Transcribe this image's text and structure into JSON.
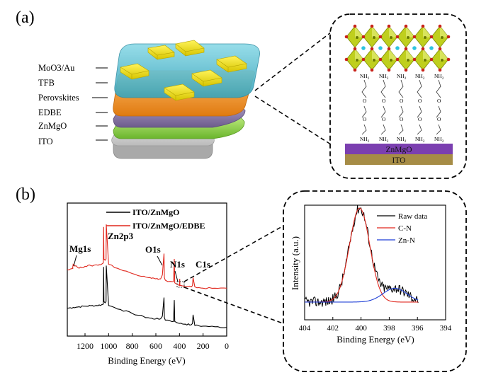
{
  "panel_a": {
    "label": "(a)",
    "layers": [
      {
        "name": "MoO3/Au",
        "color": "#f2e600"
      },
      {
        "name": "TFB",
        "color": "#5fc4d6"
      },
      {
        "name": "Perovskites",
        "color": "#f39a35"
      },
      {
        "name": "EDBE",
        "color": "#8a78a8"
      },
      {
        "name": "ZnMgO",
        "color": "#9fd45a"
      },
      {
        "name": "ITO",
        "color": "#d8d8d8"
      }
    ],
    "inset": {
      "ammonium_label": "NH",
      "subscript": "2",
      "oxygen_label": "O",
      "zinc_layer": "ZnMgO",
      "ito_layer": "ITO",
      "zinc_color": "#7b3fb0",
      "ito_color": "#a68c46",
      "octahedron_color": "#bfcf1e"
    }
  },
  "panel_b": {
    "label": "(b)",
    "chart_data": [
      {
        "type": "line",
        "xlabel": "Binding Energy (eV)",
        "ylabel": "",
        "xlim": [
          1350,
          0
        ],
        "xticks": [
          1200,
          1000,
          800,
          600,
          400,
          200,
          0
        ],
        "series": [
          {
            "name": "ITO/ZnMgO",
            "color": "#000000",
            "x": [
              1350,
              1300,
              1250,
              1200,
              1150,
              1100,
              1060,
              1045,
              1042,
              1040,
              1030,
              1022,
              1020,
              1000,
              900,
              800,
              700,
              650,
              600,
              560,
              545,
              531,
              528,
              520,
              500,
              450,
              444,
              440,
              420,
              400,
              350,
              300,
              290,
              285,
              270,
              200,
              100,
              0
            ],
            "y": [
              0.21,
              0.215,
              0.22,
              0.225,
              0.228,
              0.23,
              0.235,
              0.24,
              0.52,
              0.26,
              0.25,
              0.26,
              0.53,
              0.23,
              0.2,
              0.17,
              0.145,
              0.135,
              0.13,
              0.13,
              0.15,
              0.29,
              0.14,
              0.12,
              0.12,
              0.11,
              0.27,
              0.11,
              0.1,
              0.095,
              0.09,
              0.085,
              0.095,
              0.16,
              0.08,
              0.075,
              0.07,
              0.065
            ]
          },
          {
            "name": "ITO/ZnMgO/EDBE",
            "color": "#e0261c",
            "x": [
              1350,
              1300,
              1305,
              1300,
              1250,
              1200,
              1150,
              1100,
              1060,
              1045,
              1042,
              1040,
              1030,
              1022,
              1020,
              1000,
              900,
              800,
              700,
              650,
              600,
              560,
              545,
              531,
              528,
              520,
              500,
              450,
              444,
              440,
              420,
              400,
              398,
              396,
              350,
              300,
              290,
              285,
              270,
              200,
              100,
              0
            ],
            "y": [
              0.5,
              0.51,
              0.51,
              0.54,
              0.51,
              0.525,
              0.53,
              0.535,
              0.54,
              0.55,
              0.82,
              0.58,
              0.57,
              0.58,
              0.84,
              0.54,
              0.5,
              0.47,
              0.45,
              0.44,
              0.43,
              0.43,
              0.46,
              0.62,
              0.44,
              0.42,
              0.41,
              0.41,
              0.58,
              0.4,
              0.39,
              0.38,
              0.43,
              0.38,
              0.37,
              0.37,
              0.38,
              0.44,
              0.37,
              0.36,
              0.36,
              0.36
            ]
          }
        ],
        "annotations": [
          {
            "text": "Mg1s",
            "x": 1304
          },
          {
            "text": "Zn2p3",
            "x": 1022
          },
          {
            "text": "O1s",
            "x": 531
          },
          {
            "text": "N1s",
            "x": 400
          },
          {
            "text": "C1s",
            "x": 285
          }
        ],
        "legend": "top-right",
        "grid": false
      },
      {
        "type": "line",
        "xlabel": "Binding Energy (eV)",
        "ylabel": "Intensity (a.u.)",
        "xlim": [
          404,
          394
        ],
        "xticks": [
          404,
          402,
          400,
          398,
          396,
          394
        ],
        "series": [
          {
            "name": "Raw data",
            "color": "#000000",
            "raw": true
          },
          {
            "name": "C-N",
            "color": "#e0261c",
            "center": 400.1,
            "sigma": 0.72,
            "amp": 0.82
          },
          {
            "name": "Zn-N",
            "color": "#1f3fd6",
            "center": 397.6,
            "sigma": 0.85,
            "amp": 0.12
          }
        ],
        "legend": "top-right",
        "grid": false
      }
    ]
  }
}
